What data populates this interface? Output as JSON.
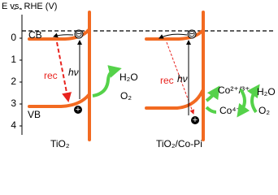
{
  "axis": {
    "label": "E vs. RHE (V)",
    "ticks": [
      "-",
      "0",
      "1",
      "2",
      "3",
      "4"
    ]
  },
  "left_panel": {
    "cb": "CB",
    "vb": "VB",
    "rec": "rec",
    "hv": "hν",
    "electron": "⊖",
    "hole": "+",
    "reactant": "H₂O",
    "product": "O₂",
    "label": "TiO₂"
  },
  "right_panel": {
    "rec": "rec",
    "hv": "hν",
    "electron": "⊖",
    "hole": "+",
    "cocatalyst_low": "Co²⁺/³⁺",
    "cocatalyst_high": "Co⁴⁺",
    "reactant": "H₂O",
    "product": "O₂",
    "label": "TiO₂/Co-Pi"
  }
}
